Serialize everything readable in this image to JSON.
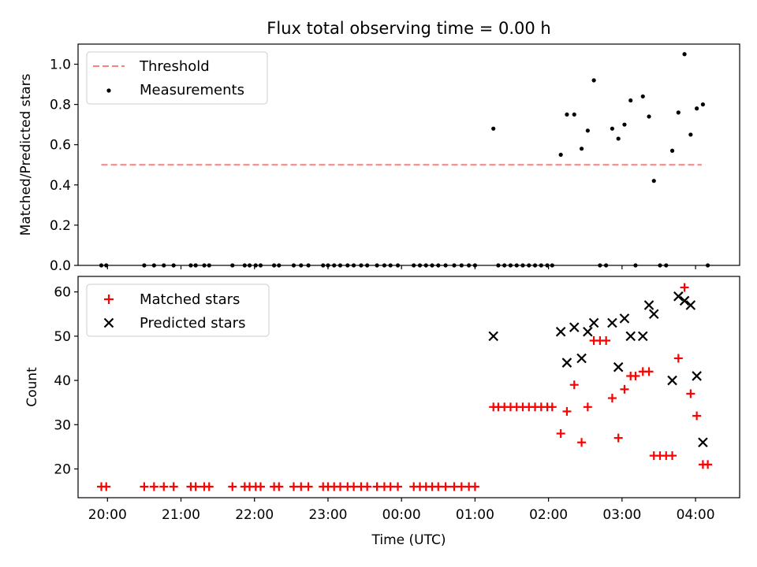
{
  "chart_data": [
    {
      "type": "scatter",
      "title": "Flux total observing time = 0.00 h",
      "xlabel": "",
      "ylabel": "Matched/Predicted stars",
      "ylim": [
        0.0,
        1.1
      ],
      "yticks": [
        0.0,
        0.2,
        0.4,
        0.6,
        0.8,
        1.0
      ],
      "ytick_labels": [
        "0.0",
        "0.2",
        "0.4",
        "0.6",
        "0.8",
        "1.0"
      ],
      "xlim": [
        "19:36",
        "04:36"
      ],
      "legend": {
        "position": "top-left",
        "entries": [
          "Threshold",
          "Measurements"
        ]
      },
      "threshold": {
        "name": "Threshold",
        "value": 0.5,
        "x_range": [
          "19:55",
          "04:05"
        ],
        "color": "#ff7f7f",
        "style": "dashed"
      },
      "series": [
        {
          "name": "Measurements",
          "color": "#000000",
          "marker": "dot",
          "points": [
            [
              "19:55",
              0.0
            ],
            [
              "19:59",
              0.0
            ],
            [
              "20:30",
              0.0
            ],
            [
              "20:38",
              0.0
            ],
            [
              "20:46",
              0.0
            ],
            [
              "20:54",
              0.0
            ],
            [
              "21:08",
              0.0
            ],
            [
              "21:12",
              0.0
            ],
            [
              "21:19",
              0.0
            ],
            [
              "21:23",
              0.0
            ],
            [
              "21:42",
              0.0
            ],
            [
              "21:52",
              0.0
            ],
            [
              "21:56",
              0.0
            ],
            [
              "22:01",
              0.0
            ],
            [
              "22:05",
              0.0
            ],
            [
              "22:16",
              0.0
            ],
            [
              "22:20",
              0.0
            ],
            [
              "22:32",
              0.0
            ],
            [
              "22:38",
              0.0
            ],
            [
              "22:44",
              0.0
            ],
            [
              "22:56",
              0.0
            ],
            [
              "23:00",
              0.0
            ],
            [
              "23:05",
              0.0
            ],
            [
              "23:10",
              0.0
            ],
            [
              "23:16",
              0.0
            ],
            [
              "23:21",
              0.0
            ],
            [
              "23:27",
              0.0
            ],
            [
              "23:32",
              0.0
            ],
            [
              "23:40",
              0.0
            ],
            [
              "23:46",
              0.0
            ],
            [
              "23:51",
              0.0
            ],
            [
              "23:57",
              0.0
            ],
            [
              "00:10",
              0.0
            ],
            [
              "00:15",
              0.0
            ],
            [
              "00:20",
              0.0
            ],
            [
              "00:25",
              0.0
            ],
            [
              "00:30",
              0.0
            ],
            [
              "00:36",
              0.0
            ],
            [
              "00:43",
              0.0
            ],
            [
              "00:49",
              0.0
            ],
            [
              "00:55",
              0.0
            ],
            [
              "01:00",
              0.0
            ],
            [
              "01:15",
              0.68
            ],
            [
              "01:19",
              0.0
            ],
            [
              "01:24",
              0.0
            ],
            [
              "01:29",
              0.0
            ],
            [
              "01:34",
              0.0
            ],
            [
              "01:39",
              0.0
            ],
            [
              "01:44",
              0.0
            ],
            [
              "01:49",
              0.0
            ],
            [
              "01:54",
              0.0
            ],
            [
              "01:59",
              0.0
            ],
            [
              "02:03",
              0.0
            ],
            [
              "02:10",
              0.55
            ],
            [
              "02:15",
              0.75
            ],
            [
              "02:21",
              0.75
            ],
            [
              "02:27",
              0.58
            ],
            [
              "02:32",
              0.67
            ],
            [
              "02:37",
              0.92
            ],
            [
              "02:42",
              0.0
            ],
            [
              "02:47",
              0.0
            ],
            [
              "02:52",
              0.68
            ],
            [
              "02:57",
              0.63
            ],
            [
              "03:02",
              0.7
            ],
            [
              "03:07",
              0.82
            ],
            [
              "03:11",
              0.0
            ],
            [
              "03:17",
              0.84
            ],
            [
              "03:22",
              0.74
            ],
            [
              "03:26",
              0.42
            ],
            [
              "03:31",
              0.0
            ],
            [
              "03:36",
              0.0
            ],
            [
              "03:41",
              0.57
            ],
            [
              "03:46",
              0.76
            ],
            [
              "03:51",
              1.05
            ],
            [
              "03:56",
              0.65
            ],
            [
              "04:01",
              0.78
            ],
            [
              "04:06",
              0.8
            ],
            [
              "04:10",
              0.0
            ]
          ]
        }
      ]
    },
    {
      "type": "scatter",
      "title": "",
      "xlabel": "Time (UTC)",
      "ylabel": "Count",
      "ylim": [
        13.5,
        63.5
      ],
      "yticks": [
        20,
        30,
        40,
        50,
        60
      ],
      "ytick_labels": [
        "20",
        "30",
        "40",
        "50",
        "60"
      ],
      "xlim": [
        "19:36",
        "04:36"
      ],
      "xticks": [
        "20:00",
        "21:00",
        "22:00",
        "23:00",
        "00:00",
        "01:00",
        "02:00",
        "03:00",
        "04:00"
      ],
      "legend": {
        "position": "top-left",
        "entries": [
          "Matched stars",
          "Predicted stars"
        ]
      },
      "series": [
        {
          "name": "Matched stars",
          "color": "#ff0000",
          "marker": "plus",
          "points": [
            [
              "19:55",
              16
            ],
            [
              "19:59",
              16
            ],
            [
              "20:30",
              16
            ],
            [
              "20:38",
              16
            ],
            [
              "20:46",
              16
            ],
            [
              "20:54",
              16
            ],
            [
              "21:08",
              16
            ],
            [
              "21:12",
              16
            ],
            [
              "21:19",
              16
            ],
            [
              "21:23",
              16
            ],
            [
              "21:42",
              16
            ],
            [
              "21:52",
              16
            ],
            [
              "21:56",
              16
            ],
            [
              "22:01",
              16
            ],
            [
              "22:05",
              16
            ],
            [
              "22:16",
              16
            ],
            [
              "22:20",
              16
            ],
            [
              "22:32",
              16
            ],
            [
              "22:38",
              16
            ],
            [
              "22:44",
              16
            ],
            [
              "22:56",
              16
            ],
            [
              "23:00",
              16
            ],
            [
              "23:05",
              16
            ],
            [
              "23:10",
              16
            ],
            [
              "23:16",
              16
            ],
            [
              "23:21",
              16
            ],
            [
              "23:27",
              16
            ],
            [
              "23:32",
              16
            ],
            [
              "23:40",
              16
            ],
            [
              "23:46",
              16
            ],
            [
              "23:51",
              16
            ],
            [
              "23:57",
              16
            ],
            [
              "00:10",
              16
            ],
            [
              "00:15",
              16
            ],
            [
              "00:20",
              16
            ],
            [
              "00:25",
              16
            ],
            [
              "00:30",
              16
            ],
            [
              "00:36",
              16
            ],
            [
              "00:43",
              16
            ],
            [
              "00:49",
              16
            ],
            [
              "00:55",
              16
            ],
            [
              "01:00",
              16
            ],
            [
              "01:15",
              34
            ],
            [
              "01:19",
              34
            ],
            [
              "01:24",
              34
            ],
            [
              "01:29",
              34
            ],
            [
              "01:34",
              34
            ],
            [
              "01:39",
              34
            ],
            [
              "01:44",
              34
            ],
            [
              "01:49",
              34
            ],
            [
              "01:54",
              34
            ],
            [
              "01:59",
              34
            ],
            [
              "02:03",
              34
            ],
            [
              "02:10",
              28
            ],
            [
              "02:15",
              33
            ],
            [
              "02:21",
              39
            ],
            [
              "02:27",
              26
            ],
            [
              "02:32",
              34
            ],
            [
              "02:37",
              49
            ],
            [
              "02:42",
              49
            ],
            [
              "02:47",
              49
            ],
            [
              "02:52",
              36
            ],
            [
              "02:57",
              27
            ],
            [
              "03:02",
              38
            ],
            [
              "03:07",
              41
            ],
            [
              "03:11",
              41
            ],
            [
              "03:17",
              42
            ],
            [
              "03:22",
              42
            ],
            [
              "03:26",
              23
            ],
            [
              "03:31",
              23
            ],
            [
              "03:36",
              23
            ],
            [
              "03:41",
              23
            ],
            [
              "03:46",
              45
            ],
            [
              "03:51",
              61
            ],
            [
              "03:56",
              37
            ],
            [
              "04:01",
              32
            ],
            [
              "04:06",
              21
            ],
            [
              "04:10",
              21
            ]
          ]
        },
        {
          "name": "Predicted stars",
          "color": "#000000",
          "marker": "x",
          "points": [
            [
              "01:15",
              50
            ],
            [
              "02:10",
              51
            ],
            [
              "02:15",
              44
            ],
            [
              "02:21",
              52
            ],
            [
              "02:27",
              45
            ],
            [
              "02:32",
              51
            ],
            [
              "02:37",
              53
            ],
            [
              "02:52",
              53
            ],
            [
              "02:57",
              43
            ],
            [
              "03:02",
              54
            ],
            [
              "03:07",
              50
            ],
            [
              "03:17",
              50
            ],
            [
              "03:22",
              57
            ],
            [
              "03:26",
              55
            ],
            [
              "03:41",
              40
            ],
            [
              "03:46",
              59
            ],
            [
              "03:51",
              58
            ],
            [
              "03:56",
              57
            ],
            [
              "04:01",
              41
            ],
            [
              "04:06",
              26
            ]
          ]
        }
      ]
    }
  ]
}
